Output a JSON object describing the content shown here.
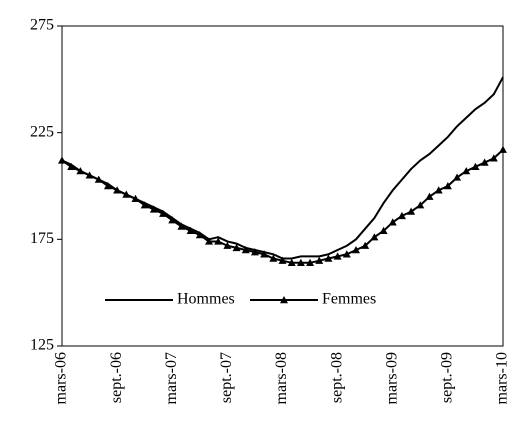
{
  "chart_data": {
    "type": "line",
    "categories": [
      "mars-06",
      null,
      null,
      null,
      null,
      null,
      "sept.-06",
      null,
      null,
      null,
      null,
      null,
      "mars-07",
      null,
      null,
      null,
      null,
      null,
      "sept.-07",
      null,
      null,
      null,
      null,
      null,
      "mars-08",
      null,
      null,
      null,
      null,
      null,
      "sept.-08",
      null,
      null,
      null,
      null,
      null,
      "mars-09",
      null,
      null,
      null,
      null,
      null,
      "sept.-09",
      null,
      null,
      null,
      null,
      null,
      "mars-10"
    ],
    "series": [
      {
        "name": "Hommes",
        "color": "#000000",
        "marker": "none",
        "values": [
          212,
          210,
          207,
          205,
          203,
          201,
          198,
          196,
          194,
          192,
          190,
          188,
          185,
          182,
          180,
          178,
          175,
          176,
          174,
          173,
          171,
          170,
          169,
          168,
          166,
          166,
          167,
          167,
          167,
          168,
          170,
          172,
          175,
          180,
          185,
          192,
          198,
          203,
          208,
          212,
          215,
          219,
          223,
          228,
          232,
          236,
          239,
          243,
          251
        ]
      },
      {
        "name": "Femmes",
        "color": "#000000",
        "marker": "triangle",
        "values": [
          212,
          209,
          207,
          205,
          203,
          200,
          198,
          196,
          194,
          191,
          189,
          187,
          184,
          181,
          179,
          177,
          174,
          174,
          172,
          171,
          170,
          169,
          168,
          166,
          165,
          164,
          164,
          164,
          165,
          166,
          167,
          168,
          170,
          172,
          176,
          179,
          183,
          186,
          188,
          191,
          195,
          198,
          200,
          204,
          207,
          209,
          211,
          213,
          217
        ]
      }
    ],
    "ylim": [
      125,
      275
    ],
    "yticks": [
      125,
      175,
      225,
      275
    ],
    "grid": false,
    "legend": "lower center"
  }
}
